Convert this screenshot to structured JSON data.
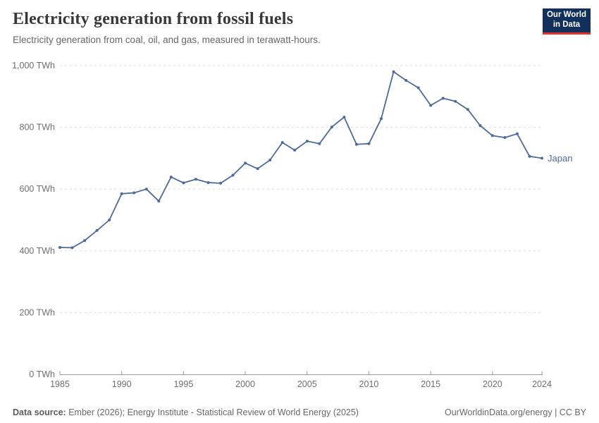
{
  "header": {
    "title": "Electricity generation from fossil fuels",
    "subtitle": "Electricity generation from coal, oil, and gas, measured in terawatt-hours."
  },
  "logo": {
    "line1": "Our World",
    "line2": "in Data",
    "bg_color": "#12305b",
    "accent_color": "#e1332c"
  },
  "chart_data": {
    "type": "line",
    "title": "Electricity generation from fossil fuels",
    "unit": "TWh",
    "grid": "horizontal-dashed",
    "legend": "end-of-line-label",
    "xlabel": "",
    "ylabel": "",
    "xlim": [
      1985,
      2024
    ],
    "ylim": [
      0,
      1000
    ],
    "x": [
      1985,
      1986,
      1987,
      1988,
      1989,
      1990,
      1991,
      1992,
      1993,
      1994,
      1995,
      1996,
      1997,
      1998,
      1999,
      2000,
      2001,
      2002,
      2003,
      2004,
      2005,
      2006,
      2007,
      2008,
      2009,
      2010,
      2011,
      2012,
      2013,
      2014,
      2015,
      2016,
      2017,
      2018,
      2019,
      2020,
      2021,
      2022,
      2023,
      2024
    ],
    "series": [
      {
        "name": "Japan",
        "color": "#4c6a9c",
        "values": [
          411,
          410,
          433,
          466,
          500,
          585,
          588,
          600,
          561,
          639,
          620,
          632,
          621,
          619,
          645,
          684,
          666,
          694,
          751,
          726,
          755,
          747,
          801,
          833,
          745,
          747,
          828,
          980,
          952,
          928,
          871,
          894,
          884,
          858,
          806,
          773,
          767,
          779,
          706,
          700
        ]
      }
    ],
    "yticks": [
      {
        "value": 0,
        "label": "0 TWh"
      },
      {
        "value": 200,
        "label": "200 TWh"
      },
      {
        "value": 400,
        "label": "400 TWh"
      },
      {
        "value": 600,
        "label": "600 TWh"
      },
      {
        "value": 800,
        "label": "800 TWh"
      },
      {
        "value": 1000,
        "label": "1,000 TWh"
      }
    ],
    "xticks": [
      {
        "value": 1985,
        "label": "1985"
      },
      {
        "value": 1990,
        "label": "1990"
      },
      {
        "value": 1995,
        "label": "1995"
      },
      {
        "value": 2000,
        "label": "2000"
      },
      {
        "value": 2005,
        "label": "2005"
      },
      {
        "value": 2010,
        "label": "2010"
      },
      {
        "value": 2015,
        "label": "2015"
      },
      {
        "value": 2020,
        "label": "2020"
      },
      {
        "value": 2024,
        "label": "2024"
      }
    ],
    "colors": {
      "gridline": "#dddddd",
      "axis": "#999999",
      "tick_text": "#6e6e6e"
    }
  },
  "footer": {
    "source_label": "Data source:",
    "source_text": " Ember (2026); Energy Institute - Statistical Review of World Energy (2025)",
    "rights": "OurWorldinData.org/energy | CC BY"
  }
}
